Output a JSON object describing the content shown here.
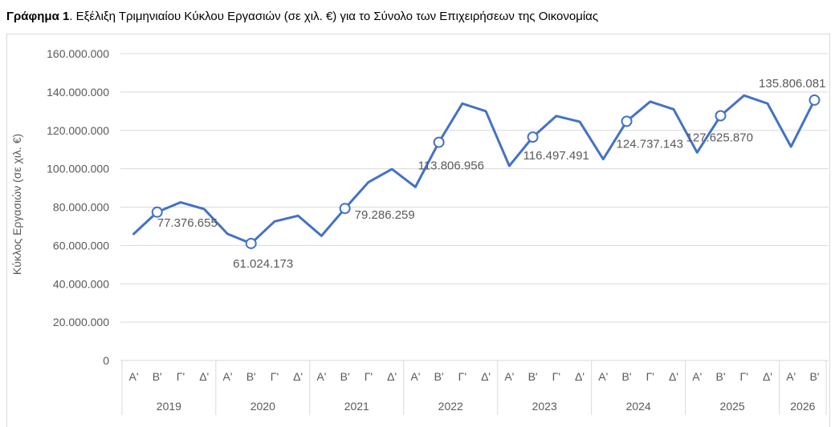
{
  "caption": {
    "label": "Γράφημα 1",
    "text": ". Εξέλιξη Τριμηνιαίου Κύκλου Εργασιών (σε χιλ. €) για το Σύνολο των Επιχειρήσεων της Οικονομίας"
  },
  "colors": {
    "line": "#4472C4",
    "grid": "#d9d9d9",
    "axis_text": "#595959",
    "marker_fill": "#ffffff"
  },
  "chart_data": {
    "type": "line",
    "ylabel": "Κύκλος Εργασιών (σε χιλ. €)",
    "ylim": [
      0,
      160000000
    ],
    "yticks": [
      0,
      20000000,
      40000000,
      60000000,
      80000000,
      100000000,
      120000000,
      140000000,
      160000000
    ],
    "ytick_labels": [
      "0",
      "20.000.000",
      "40.000.000",
      "60.000.000",
      "80.000.000",
      "100.000.000",
      "120.000.000",
      "140.000.000",
      "160.000.000"
    ],
    "grid": true,
    "legend": "none",
    "quarters": [
      "Α'",
      "Β'",
      "Γ'",
      "Δ'",
      "Α'",
      "Β'",
      "Γ'",
      "Δ'",
      "Α'",
      "Β'",
      "Γ'",
      "Δ'",
      "Α'",
      "Β'",
      "Γ'",
      "Δ'",
      "Α'",
      "Β'",
      "Γ'",
      "Δ'",
      "Α'",
      "Β'",
      "Γ'",
      "Δ'",
      "Α'",
      "Β'",
      "Γ'",
      "Δ'",
      "Α'",
      "Β'"
    ],
    "years": [
      {
        "label": "2019",
        "quarters": 4
      },
      {
        "label": "2020",
        "quarters": 4
      },
      {
        "label": "2021",
        "quarters": 4
      },
      {
        "label": "2022",
        "quarters": 4
      },
      {
        "label": "2023",
        "quarters": 4
      },
      {
        "label": "2024",
        "quarters": 4
      },
      {
        "label": "2025",
        "quarters": 4
      },
      {
        "label": "2026",
        "quarters": 2
      }
    ],
    "series": [
      {
        "values": [
          66000000,
          77376655,
          82500000,
          79000000,
          66000000,
          61024173,
          72500000,
          75500000,
          65000000,
          79286259,
          93000000,
          99800000,
          90500000,
          113806956,
          134000000,
          130000000,
          101500000,
          116497491,
          127500000,
          124500000,
          105000000,
          124737143,
          135000000,
          131000000,
          108500000,
          127625870,
          138200000,
          134000000,
          111500000,
          135806081
        ]
      }
    ],
    "data_labels": [
      {
        "index": 1,
        "text": "77.376.655",
        "anchor": "start",
        "dx": 0,
        "dy": 18
      },
      {
        "index": 5,
        "text": "61.024.173",
        "anchor": "middle",
        "dx": 15,
        "dy": 30
      },
      {
        "index": 9,
        "text": "79.286.259",
        "anchor": "start",
        "dx": 12,
        "dy": 13
      },
      {
        "index": 13,
        "text": "113.806.956",
        "anchor": "start",
        "dx": -26,
        "dy": 34
      },
      {
        "index": 17,
        "text": "116.497.491",
        "anchor": "start",
        "dx": -12,
        "dy": 28
      },
      {
        "index": 21,
        "text": "124.737.143",
        "anchor": "start",
        "dx": -13,
        "dy": 33
      },
      {
        "index": 25,
        "text": "127.625.870",
        "anchor": "start",
        "dx": -43,
        "dy": 32
      },
      {
        "index": 29,
        "text": "135.806.081",
        "anchor": "end",
        "dx": 14,
        "dy": -16
      }
    ]
  }
}
